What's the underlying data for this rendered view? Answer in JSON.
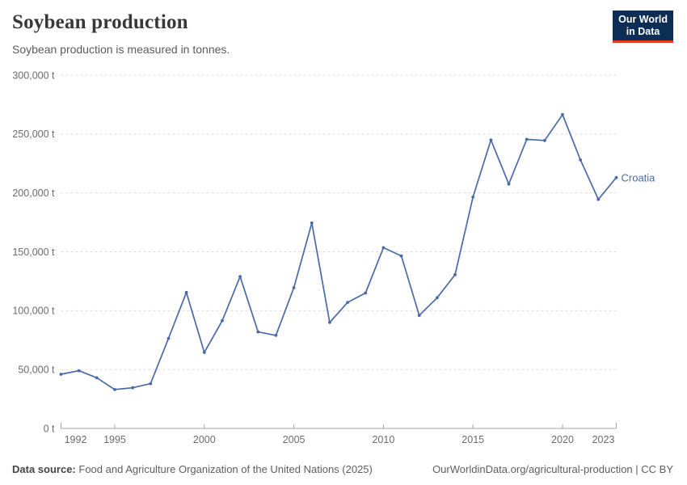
{
  "header": {
    "title": "Soybean production",
    "subtitle": "Soybean production is measured in tonnes.",
    "logo": {
      "line1": "Our World",
      "line2": "in Data",
      "bg_color": "#0d2e54",
      "accent_color": "#e43b1f"
    }
  },
  "chart_data": {
    "type": "line",
    "title": "Soybean production",
    "unit": "t",
    "xlim": [
      1992,
      2023
    ],
    "ylim": [
      0,
      300000
    ],
    "x_ticks": [
      1992,
      1995,
      2000,
      2005,
      2010,
      2015,
      2020,
      2023
    ],
    "y_ticks": [
      0,
      50000,
      100000,
      150000,
      200000,
      250000,
      300000
    ],
    "grid": "horizontal-dashed",
    "legend_position": "end-of-line-label",
    "entity_label": "Croatia",
    "series": [
      {
        "name": "Croatia",
        "color": "#4a69a8",
        "x": [
          1992,
          1993,
          1994,
          1995,
          1996,
          1997,
          1998,
          1999,
          2000,
          2001,
          2002,
          2003,
          2004,
          2005,
          2006,
          2007,
          2008,
          2009,
          2010,
          2011,
          2012,
          2013,
          2014,
          2015,
          2016,
          2017,
          2018,
          2019,
          2020,
          2021,
          2022,
          2023
        ],
        "values": [
          46000,
          49000,
          43000,
          33000,
          34500,
          38000,
          76500,
          115500,
          64500,
          91500,
          129000,
          82000,
          79000,
          119500,
          174500,
          90000,
          107000,
          115000,
          153500,
          146500,
          96000,
          111000,
          130500,
          196500,
          245000,
          207500,
          245500,
          244500,
          266500,
          228000,
          194500,
          213000
        ]
      }
    ],
    "colors": {
      "line": "#4a69a8",
      "gridline": "#dcdcdc",
      "axis": "#a3a3a3",
      "tick_label": "#6b6b6b"
    }
  },
  "footer": {
    "source_label": "Data source:",
    "source_text": "Food and Agriculture Organization of the United Nations (2025)",
    "link_text": "OurWorldinData.org/agricultural-production | CC BY"
  }
}
